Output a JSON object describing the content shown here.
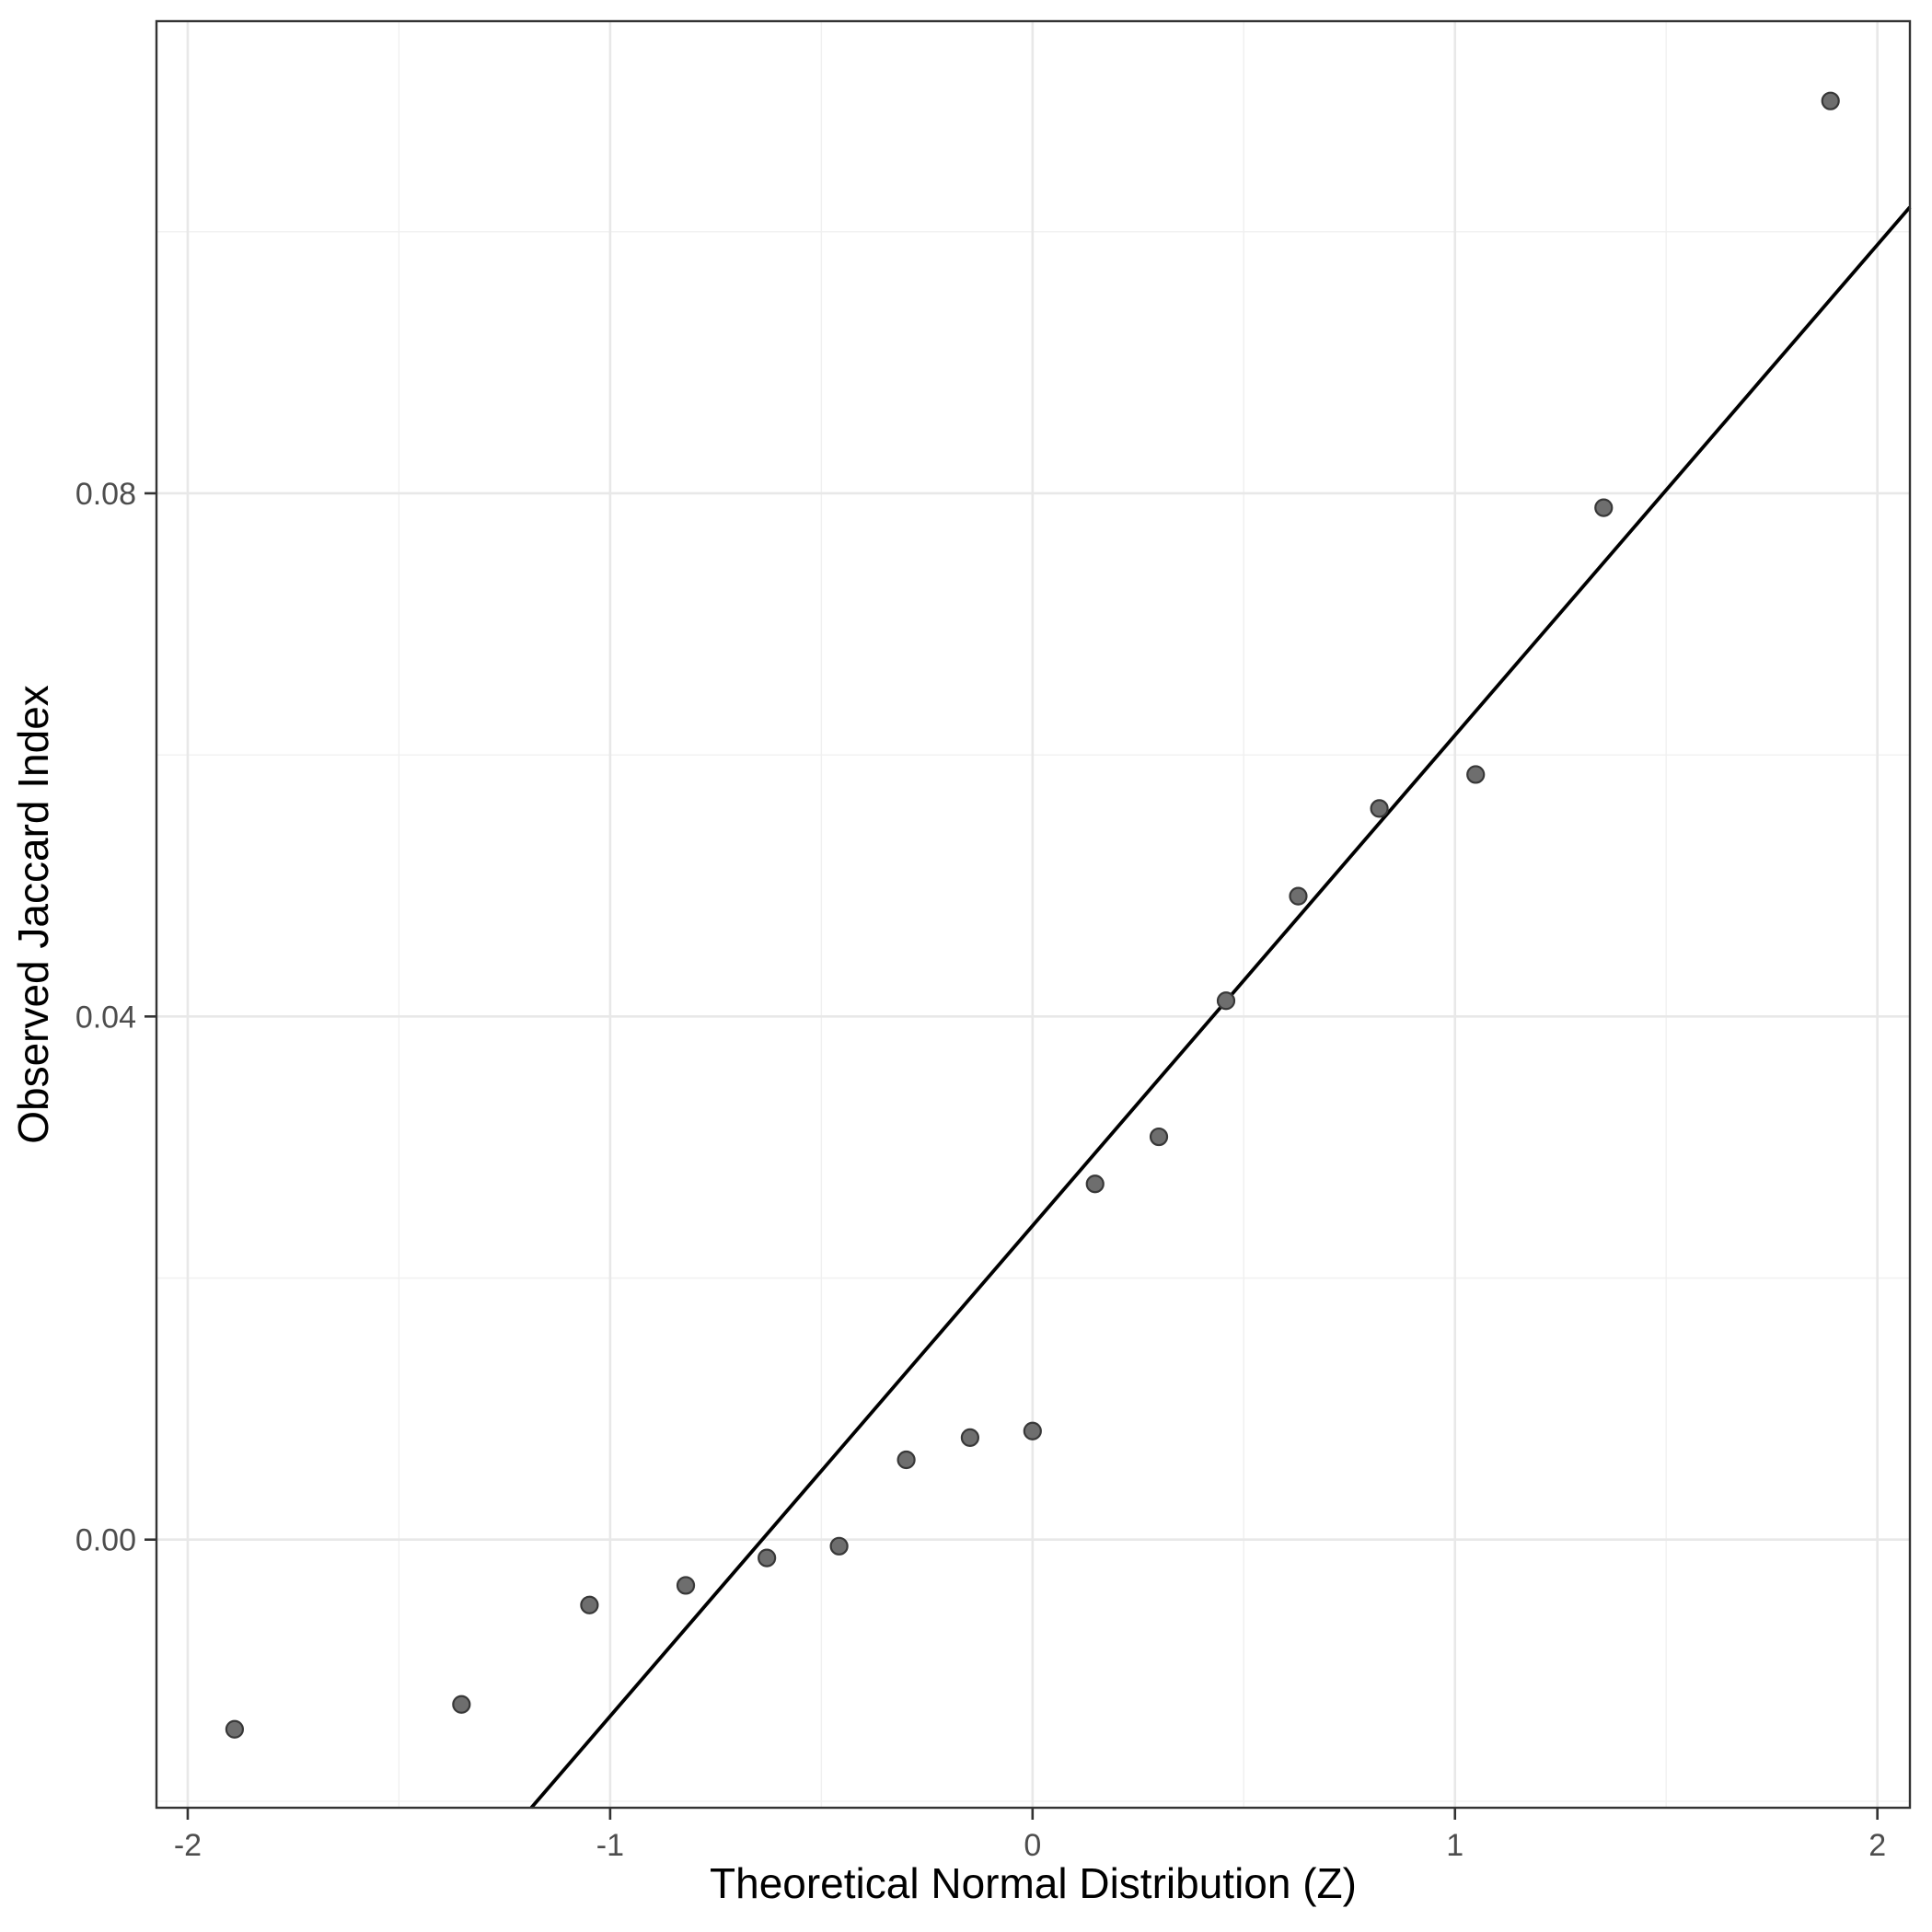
{
  "figure": {
    "description": "QQ scatter plot of observed Jaccard index values against theoretical normal quantiles with a reference line"
  },
  "chart_data": {
    "type": "scatter",
    "title": "",
    "xlabel": "Theoretical Normal Distribution (Z)",
    "ylabel": "Observed Jaccard Index",
    "xlim": [
      -2.074,
      2.077
    ],
    "ylim": [
      -0.0205,
      0.1161
    ],
    "x_major_ticks": [
      -2,
      -1,
      0,
      1,
      2
    ],
    "x_tick_labels": [
      "-2",
      "-1",
      "0",
      "1",
      "2"
    ],
    "y_major_ticks": [
      0.0,
      0.04,
      0.08
    ],
    "y_tick_labels": [
      "0.00",
      "0.04",
      "0.08"
    ],
    "x_minor_ticks": [
      -1.5,
      -0.5,
      0.5,
      1.5
    ],
    "y_minor_ticks": [
      -0.02,
      0.02,
      0.06,
      0.1
    ],
    "grid": "major-and-minor",
    "legend_position": "none",
    "points": [
      {
        "x": -1.889,
        "y": -0.0145
      },
      {
        "x": -1.352,
        "y": -0.0126
      },
      {
        "x": -1.049,
        "y": -0.005
      },
      {
        "x": -0.821,
        "y": -0.0035
      },
      {
        "x": -0.629,
        "y": -0.0014
      },
      {
        "x": -0.458,
        "y": -0.0005
      },
      {
        "x": -0.299,
        "y": 0.0061
      },
      {
        "x": -0.148,
        "y": 0.0078
      },
      {
        "x": 0.0,
        "y": 0.0083
      },
      {
        "x": 0.148,
        "y": 0.0272
      },
      {
        "x": 0.299,
        "y": 0.0308
      },
      {
        "x": 0.458,
        "y": 0.0412
      },
      {
        "x": 0.629,
        "y": 0.0492
      },
      {
        "x": 0.821,
        "y": 0.0559
      },
      {
        "x": 1.049,
        "y": 0.0585
      },
      {
        "x": 1.352,
        "y": 0.0789
      },
      {
        "x": 1.889,
        "y": 0.11
      }
    ],
    "reference_line": {
      "intercept": 0.024,
      "slope": 0.0375
    },
    "colors": {
      "point_fill": "#6e6e6e",
      "point_stroke": "#383838",
      "reference_line": "#000000",
      "major_grid": "#e8e8e8",
      "minor_grid": "#f0f0f0",
      "panel_border": "#333333",
      "tick_mark": "#333333",
      "tick_label": "#4d4d4d",
      "axis_title": "#000000",
      "background": "#ffffff"
    }
  }
}
